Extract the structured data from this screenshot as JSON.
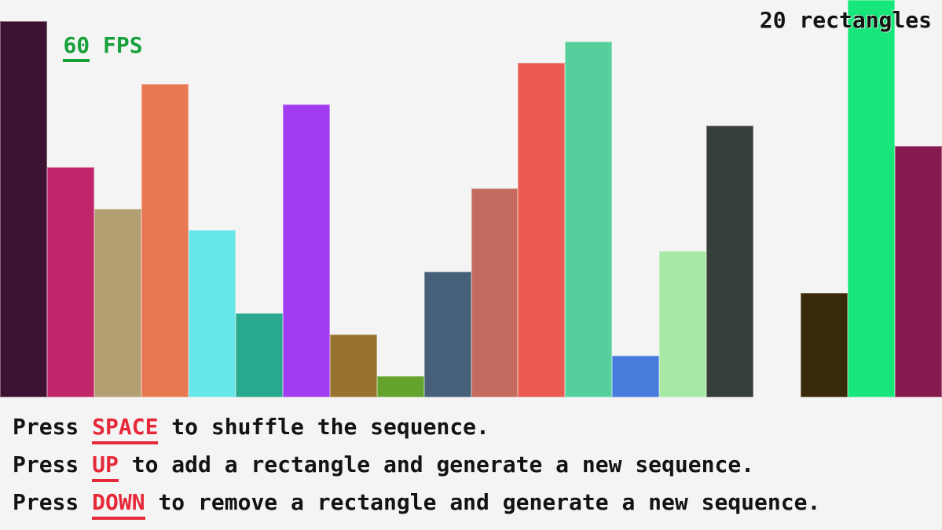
{
  "app": {
    "background": "#f4f4f4",
    "text_color": "#131313",
    "fps": {
      "value": "60",
      "suffix": " FPS",
      "color": "#18a03a"
    },
    "count_label": "20 rectangles",
    "key_color": "#e62939"
  },
  "bars": [
    {
      "value": 18,
      "color": "#3d1233"
    },
    {
      "value": 11,
      "color": "#c1266a"
    },
    {
      "value": 9,
      "color": "#b29f72"
    },
    {
      "value": 15,
      "color": "#e87851"
    },
    {
      "value": 8,
      "color": "#67e6e9"
    },
    {
      "value": 4,
      "color": "#28a88e"
    },
    {
      "value": 14,
      "color": "#a23cf0"
    },
    {
      "value": 3,
      "color": "#9a7230"
    },
    {
      "value": 1,
      "color": "#64a42c"
    },
    {
      "value": 6,
      "color": "#46607a"
    },
    {
      "value": 10,
      "color": "#c46a5e"
    },
    {
      "value": 16,
      "color": "#ea5a50"
    },
    {
      "value": 17,
      "color": "#57cf9c"
    },
    {
      "value": 2,
      "color": "#477bdc"
    },
    {
      "value": 7,
      "color": "#a5e9a4"
    },
    {
      "value": 13,
      "color": "#363e3a"
    },
    {
      "value": 0,
      "color": null
    },
    {
      "value": 5,
      "color": "#3a2a0c"
    },
    {
      "value": 19,
      "color": "#17e77b"
    },
    {
      "value": 12,
      "color": "#851a4f"
    }
  ],
  "instructions": [
    {
      "before": "Press ",
      "key": "SPACE",
      "after": " to shuffle the sequence."
    },
    {
      "before": "Press ",
      "key": "UP",
      "after": " to add a rectangle and generate a new sequence."
    },
    {
      "before": "Press ",
      "key": "DOWN",
      "after": " to remove a rectangle and generate a new sequence."
    }
  ]
}
